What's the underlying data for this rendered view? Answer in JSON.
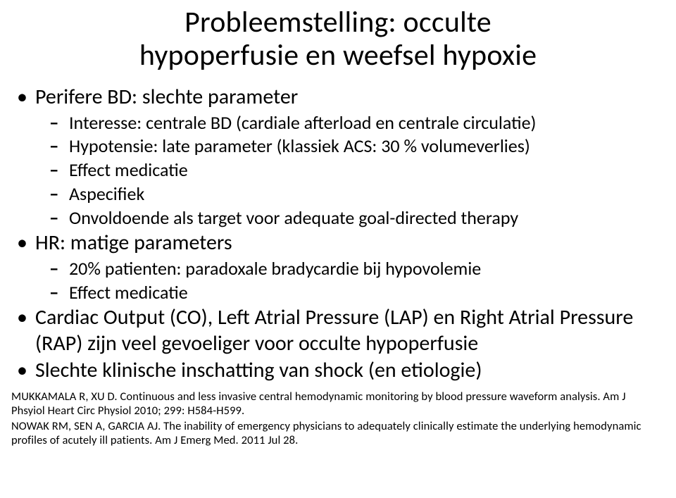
{
  "title_line1": "Probleemstelling: occulte",
  "title_line2": "hypoperfusie  en weefsel hypoxie",
  "bullets": [
    {
      "text": "Perifere BD: slechte parameter",
      "sub": [
        "Interesse: centrale BD (cardiale afterload en centrale circulatie)",
        "Hypotensie: late parameter (klassiek ACS: 30 % volumeverlies)",
        "Effect medicatie",
        "Aspecifiek",
        "Onvoldoende als target voor adequate goal-directed therapy"
      ]
    },
    {
      "text": "HR: matige parameters",
      "sub": [
        "20% patienten: paradoxale bradycardie bij hypovolemie",
        "Effect medicatie"
      ]
    },
    {
      "text": "Cardiac Output (CO), Left Atrial Pressure (LAP) en Right Atrial Pressure (RAP) zijn veel gevoeliger voor occulte hypoperfusie",
      "sub": []
    },
    {
      "text": "Slechte klinische inschatting van shock (en etiologie)",
      "sub": []
    }
  ],
  "refs": [
    "MUKKAMALA R, XU D.  Continuous and less invasive central hemodynamic monitoring by blood pressure waveform analysis.  Am J Phsyiol Heart Circ Physiol 2010; 299: H584-H599.",
    "NOWAK RM, SEN A, GARCIA AJ.  The inability of emergency physicians to adequately clinically estimate the underlying hemodynamic profiles of acutely ill patients.  Am J Emerg Med. 2011 Jul 28."
  ]
}
